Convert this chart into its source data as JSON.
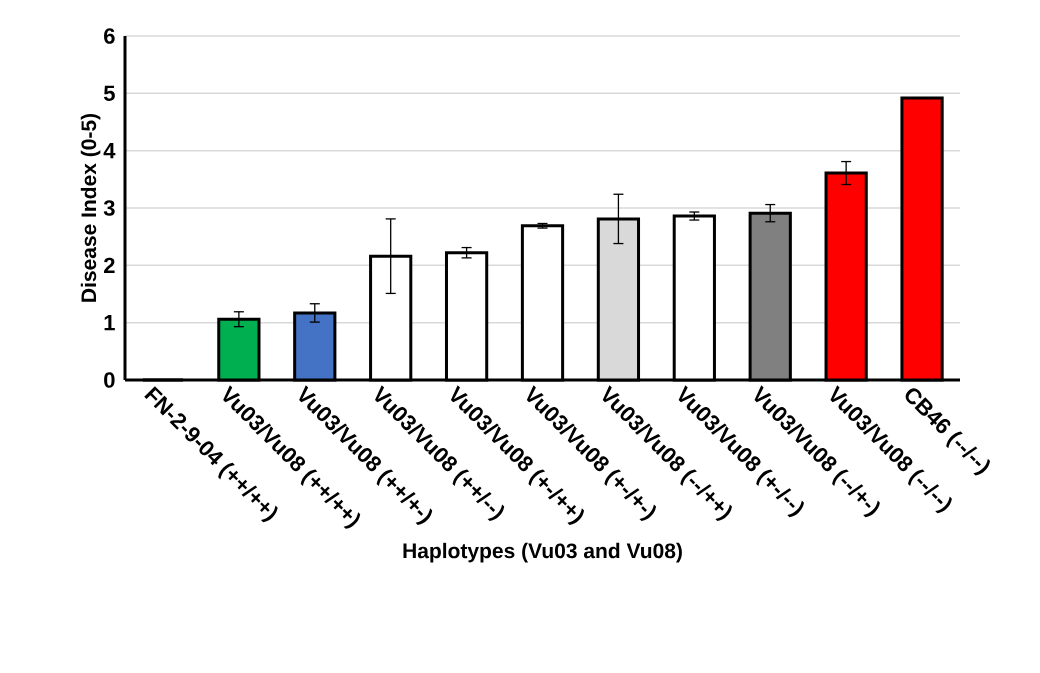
{
  "chart_data": {
    "type": "bar",
    "xlabel": "Haplotypes (Vu03 and Vu08)",
    "ylabel": "Disease Index (0-5)",
    "categories": [
      "FN-2-9-04 (++/++)",
      "Vu03/Vu08 (++/++)",
      "Vu03/Vu08 (++/+-)",
      "Vu03/Vu08 (++/--)",
      "Vu03/Vu08 (+-/++)",
      "Vu03/Vu08 (+-/+-)",
      "Vu03/Vu08 (--/++)",
      "Vu03/Vu08 (+-/--)",
      "Vu03/Vu08 (--/+-)",
      "Vu03/Vu08 (--/--)",
      "CB46 (--/--)"
    ],
    "values": [
      0,
      1.06,
      1.17,
      2.16,
      2.22,
      2.69,
      2.81,
      2.86,
      2.91,
      3.61,
      4.92
    ],
    "errors": [
      null,
      0.13,
      0.16,
      0.65,
      0.09,
      0.04,
      0.43,
      0.07,
      0.15,
      0.2,
      null
    ],
    "colors": [
      "#ffffff",
      "#00b050",
      "#4472c4",
      "#ffffff",
      "#ffffff",
      "#ffffff",
      "#d9d9d9",
      "#ffffff",
      "#808080",
      "#ff0000",
      "#ff0000"
    ],
    "ylim": [
      0,
      6
    ],
    "yticks": [
      0,
      1,
      2,
      3,
      4,
      5,
      6
    ],
    "grid": "y"
  }
}
